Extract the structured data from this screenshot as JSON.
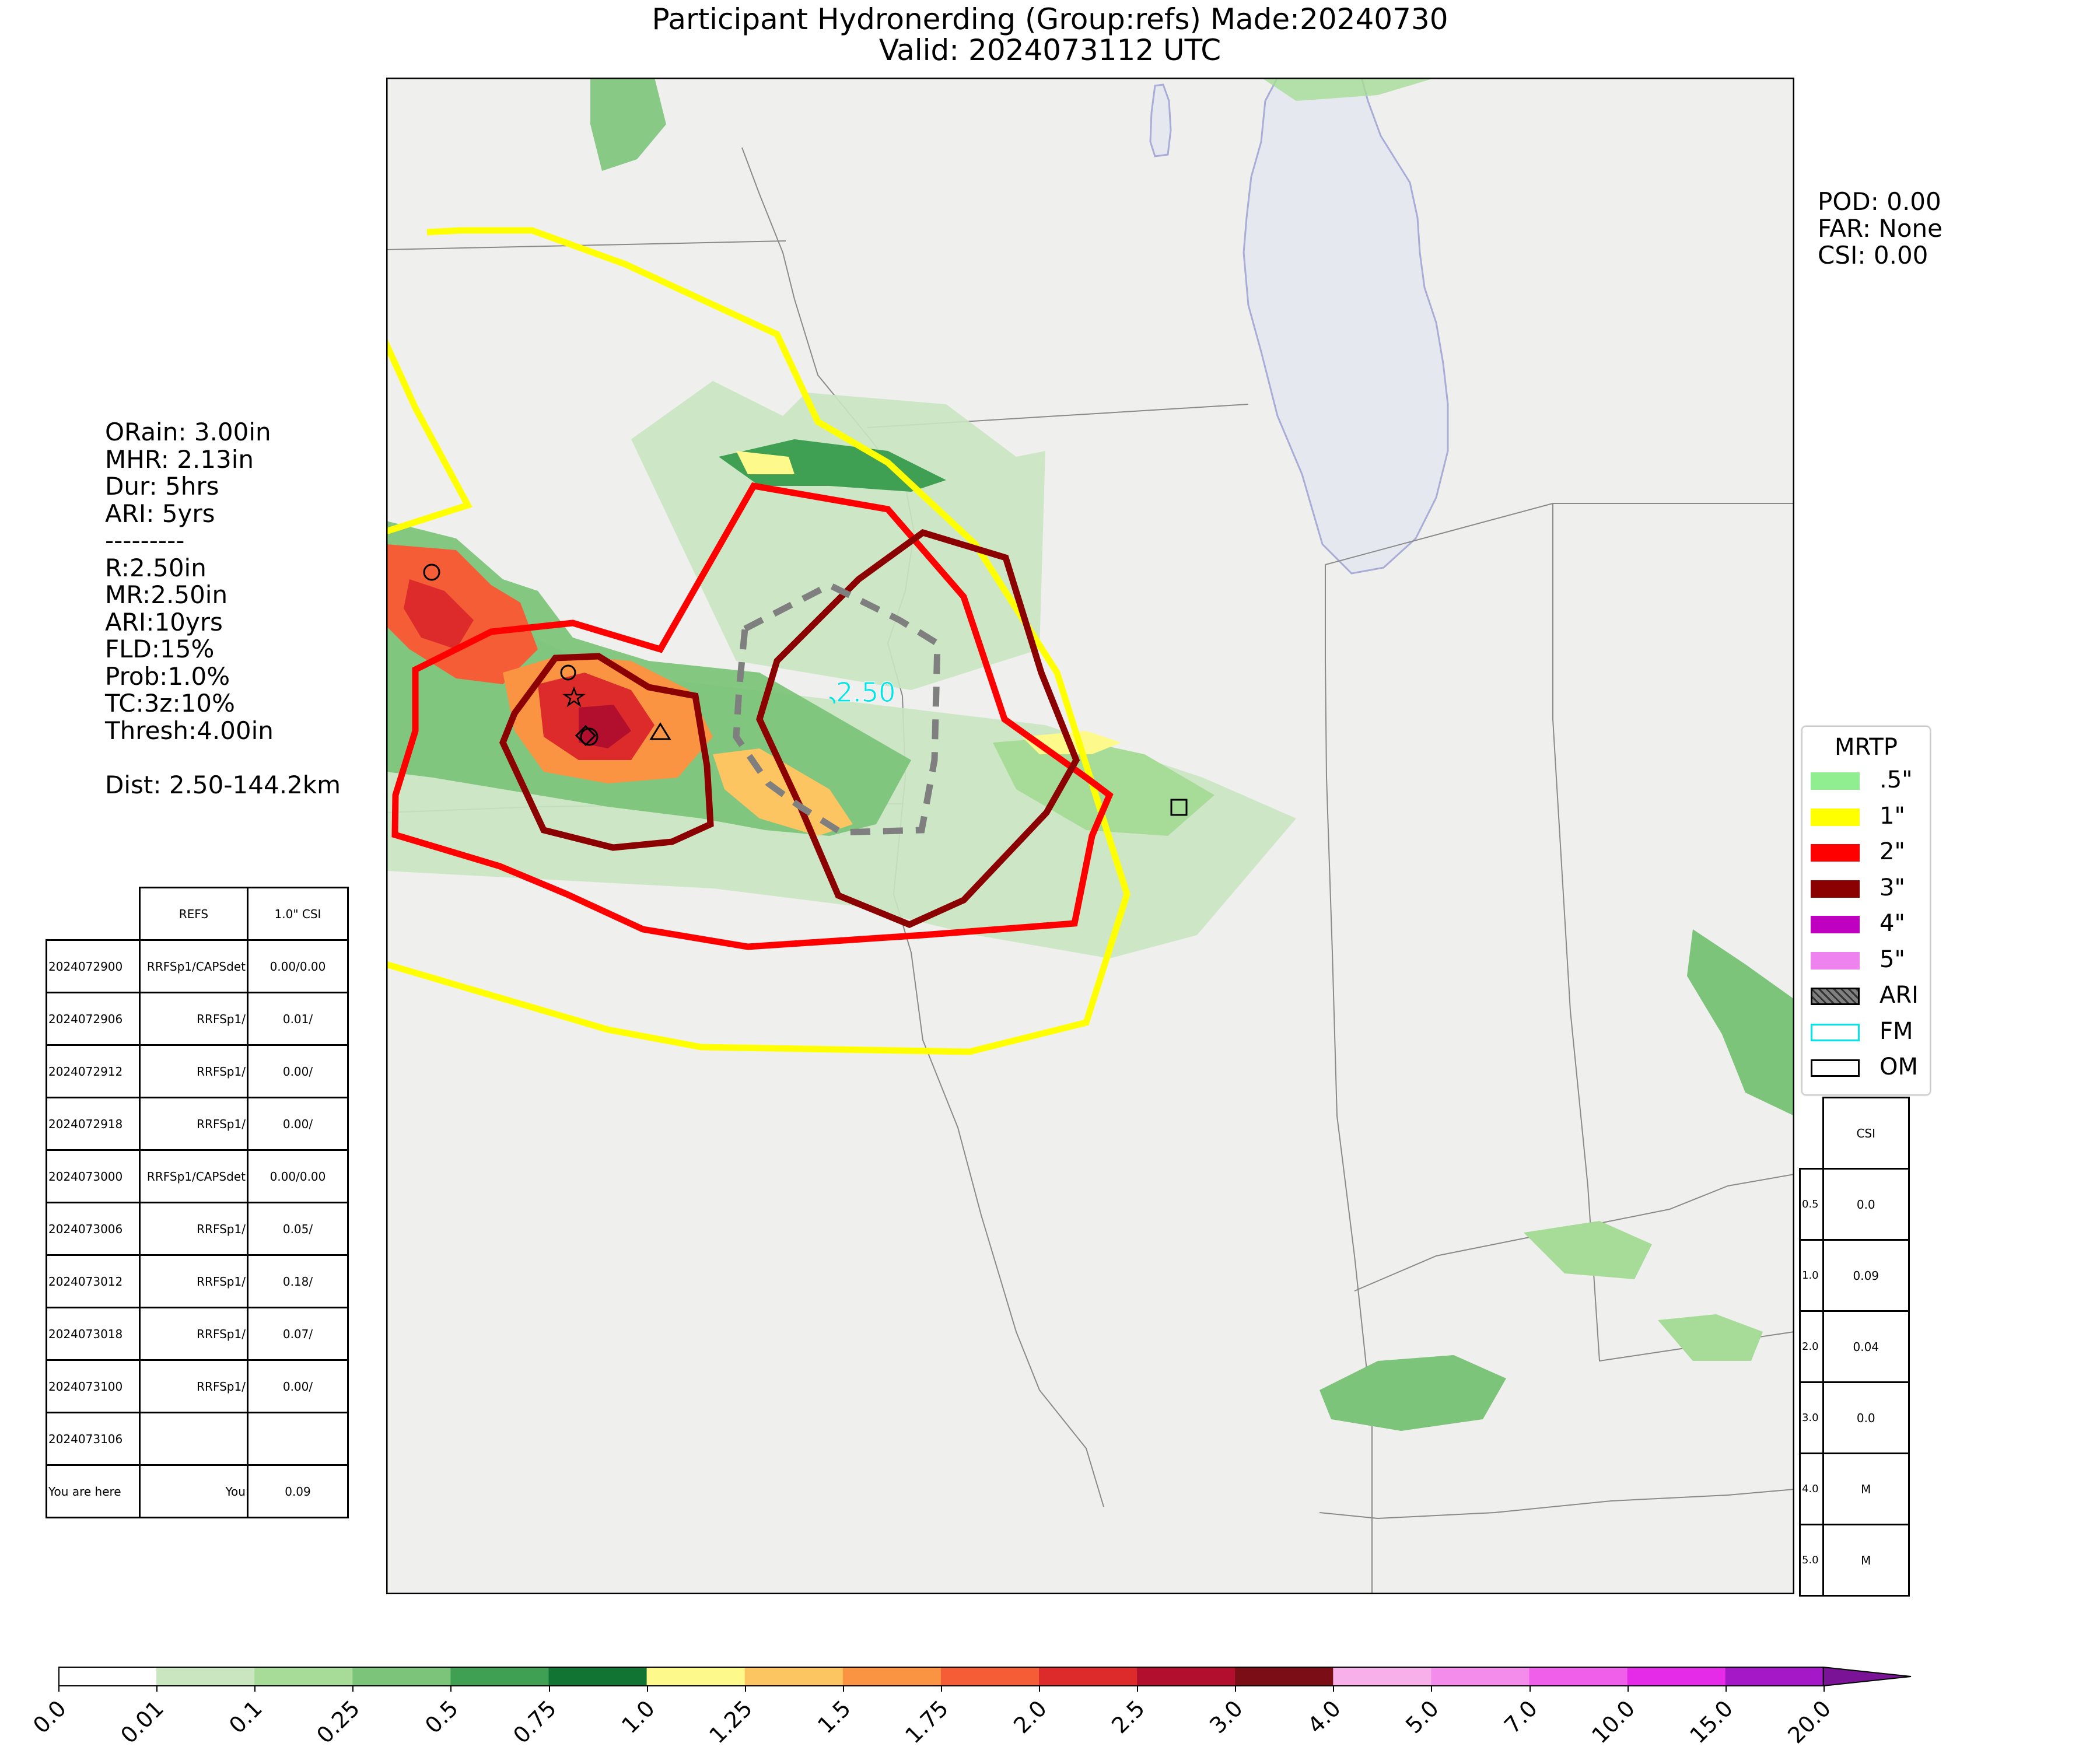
{
  "title": {
    "line1": "Participant Hydronerding (Group:refs) Made:20240730",
    "line2": "Valid: 2024073112 UTC"
  },
  "stats_text": "ORain: 3.00in\nMHR: 2.13in\nDur: 5hrs\nARI: 5yrs\n---------\nR:2.50in\nMR:2.50in\nARI:10yrs\nFLD:15%\nProb:1.0%\nTC:3z:10%\nThresh:4.00in\n\nDist: 2.50-144.2km",
  "scores_text": "POD: 0.00\nFAR: None\nCSI: 0.00",
  "map": {
    "fm_label": "2.50",
    "colors": {
      "land": "#efefed",
      "lake": "#e5e8ee",
      "boundary": "#8a8a8a",
      "mrtp_1": "#ffff00",
      "mrtp_2": "#ff0000",
      "mrtp_3": "#8b0000",
      "ari_dash": "#7f7f7f",
      "fm": "#00e5e5"
    }
  },
  "guidance_table": {
    "headers": [
      "",
      "REFS",
      "1.0\" CSI"
    ],
    "rows": [
      [
        "2024072900",
        "RRFSp1/CAPSdet",
        "0.00/0.00"
      ],
      [
        "2024072906",
        "RRFSp1/",
        "0.01/"
      ],
      [
        "2024072912",
        "RRFSp1/",
        "0.00/"
      ],
      [
        "2024072918",
        "RRFSp1/",
        "0.00/"
      ],
      [
        "2024073000",
        "RRFSp1/CAPSdet",
        "0.00/0.00"
      ],
      [
        "2024073006",
        "RRFSp1/",
        "0.05/"
      ],
      [
        "2024073012",
        "RRFSp1/",
        "0.18/"
      ],
      [
        "2024073018",
        "RRFSp1/",
        "0.07/"
      ],
      [
        "2024073100",
        "RRFSp1/",
        "0.00/"
      ],
      [
        "2024073106",
        "",
        ""
      ],
      [
        "You are here",
        "You",
        "0.09"
      ]
    ]
  },
  "csi_table": {
    "header": "CSI",
    "rows": [
      [
        "0.5",
        "0.0"
      ],
      [
        "1.0",
        "0.09"
      ],
      [
        "2.0",
        "0.04"
      ],
      [
        "3.0",
        "0.0"
      ],
      [
        "4.0",
        "M"
      ],
      [
        "5.0",
        "M"
      ]
    ]
  },
  "legend": {
    "title": "MRTP",
    "items": [
      {
        "label": ".5\"",
        "color": "#90ee90",
        "style": "fill"
      },
      {
        "label": "1\"",
        "color": "#ffff00",
        "style": "fill"
      },
      {
        "label": "2\"",
        "color": "#ff0000",
        "style": "fill"
      },
      {
        "label": "3\"",
        "color": "#8b0000",
        "style": "fill"
      },
      {
        "label": "4\"",
        "color": "#c000c0",
        "style": "fill"
      },
      {
        "label": "5\"",
        "color": "#ee82ee",
        "style": "fill"
      },
      {
        "label": "ARI",
        "color": "#808080",
        "style": "hatch"
      },
      {
        "label": "FM",
        "color": "#00e5e5",
        "style": "outline"
      },
      {
        "label": "OM",
        "color": "#000000",
        "style": "outline"
      }
    ]
  },
  "colorbar": {
    "ticks": [
      "0.0",
      "0.01",
      "0.1",
      "0.25",
      "0.5",
      "0.75",
      "1.0",
      "1.25",
      "1.5",
      "1.75",
      "2.0",
      "2.5",
      "3.0",
      "4.0",
      "5.0",
      "7.0",
      "10.0",
      "15.0",
      "20.0"
    ],
    "colors": [
      "#ffffff",
      "#c9e6c1",
      "#a6dc97",
      "#7cc47a",
      "#3f9f52",
      "#117432",
      "#fef98b",
      "#fdc561",
      "#fb9442",
      "#f45d36",
      "#dd2b2b",
      "#b20f2e",
      "#7a0d16",
      "#f7b0ea",
      "#f38cea",
      "#ef5fea",
      "#e52ae8",
      "#a418c8"
    ],
    "extend_color": "#7a1396"
  }
}
